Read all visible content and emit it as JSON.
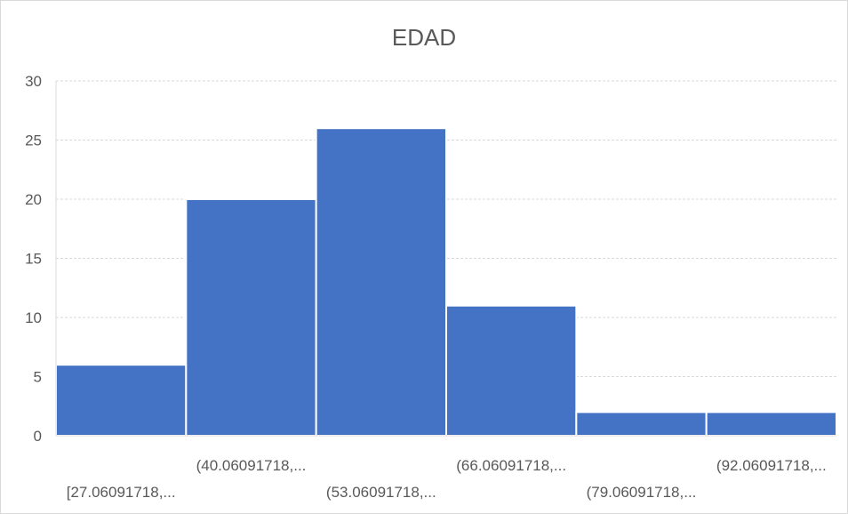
{
  "chart_data": {
    "type": "bar",
    "title": "EDAD",
    "xlabel": "",
    "ylabel": "",
    "categories": [
      "[27.06091718,...",
      "(40.06091718,...",
      "(53.06091718,...",
      "(66.06091718,...",
      "(79.06091718,...",
      "(92.06091718,..."
    ],
    "values": [
      6,
      20,
      26,
      11,
      2,
      2
    ],
    "ylim": [
      0,
      30
    ],
    "yticks": [
      "0",
      "5",
      "10",
      "15",
      "20",
      "25",
      "30"
    ],
    "grid": true,
    "legend": "none",
    "bar_color": "#4472C4",
    "grid_color": "#d9d9d9",
    "text_color": "#595959"
  }
}
